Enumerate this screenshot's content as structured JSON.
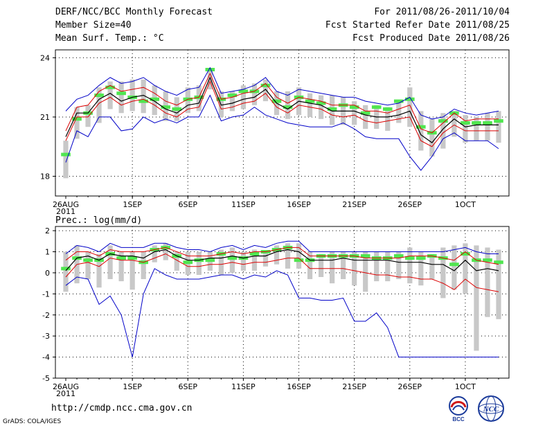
{
  "header": {
    "title": "DERF/NCC/BCC Monthly Forecast",
    "member_size": "Member Size=40",
    "variable": "Mean Surf. Temp.: °C",
    "forecast_range": "For 2011/08/26-2011/10/04",
    "start_date": "Fcst Started Refer Date 2011/08/25",
    "produced_date": "Fcst Produced Date 2011/08/26"
  },
  "footer": {
    "url": "http://cmdp.ncc.cma.gov.cn",
    "grads": "GrADS: COLA/IGES",
    "logo_bcc": "BCC",
    "logo_ncc": "NCC"
  },
  "colors": {
    "envelope": "#0000c8",
    "spread": "#dc0000",
    "mean": "#000000",
    "observed": "#50e650",
    "box": "#c8c8c8"
  },
  "chart_data": [
    {
      "type": "line",
      "id": "temp",
      "title": "Mean Surf. Temp.: °C",
      "ylim": [
        17,
        24.4
      ],
      "yticks": [
        18,
        21,
        24
      ],
      "xtick_labels": [
        {
          "i": 0,
          "label": "26AUG",
          "sub": "2011"
        },
        {
          "i": 6,
          "label": "1SEP"
        },
        {
          "i": 11,
          "label": "6SEP"
        },
        {
          "i": 16,
          "label": "11SEP"
        },
        {
          "i": 21,
          "label": "16SEP"
        },
        {
          "i": 26,
          "label": "21SEP"
        },
        {
          "i": 31,
          "label": "26SEP"
        },
        {
          "i": 36,
          "label": "1OCT"
        }
      ],
      "n_days": 40,
      "series": [
        {
          "name": "ensemble_max",
          "role": "envelope",
          "values": [
            21.3,
            21.9,
            22.1,
            22.6,
            23.0,
            22.7,
            22.8,
            23.0,
            22.6,
            22.3,
            22.1,
            22.4,
            22.5,
            23.5,
            22.2,
            22.3,
            22.4,
            22.6,
            23.0,
            22.3,
            22.1,
            22.4,
            22.3,
            22.2,
            22.1,
            22.0,
            22.0,
            21.8,
            21.7,
            21.6,
            21.7,
            22.0,
            21.1,
            20.9,
            21.0,
            21.4,
            21.2,
            21.1,
            21.2,
            21.3
          ]
        },
        {
          "name": "spread_upper",
          "role": "spread",
          "values": [
            20.3,
            21.5,
            21.6,
            22.3,
            22.6,
            22.3,
            22.4,
            22.5,
            22.2,
            21.8,
            21.6,
            21.9,
            22.0,
            23.2,
            21.9,
            22.0,
            22.2,
            22.3,
            22.7,
            22.0,
            21.7,
            22.0,
            21.9,
            21.8,
            21.6,
            21.6,
            21.6,
            21.3,
            21.3,
            21.2,
            21.4,
            21.6,
            20.4,
            20.2,
            20.7,
            21.2,
            20.8,
            20.9,
            20.9,
            20.9
          ]
        },
        {
          "name": "ensemble_mean",
          "role": "mean",
          "values": [
            20.0,
            21.2,
            21.2,
            21.9,
            22.2,
            21.8,
            22.0,
            22.1,
            21.8,
            21.4,
            21.2,
            21.6,
            21.7,
            23.0,
            21.6,
            21.7,
            21.9,
            22.0,
            22.4,
            21.7,
            21.4,
            21.8,
            21.7,
            21.6,
            21.3,
            21.3,
            21.3,
            21.1,
            21.0,
            21.0,
            21.1,
            21.3,
            20.1,
            19.7,
            20.4,
            20.9,
            20.5,
            20.6,
            20.6,
            20.6
          ]
        },
        {
          "name": "spread_lower",
          "role": "spread",
          "values": [
            19.8,
            21.0,
            21.0,
            21.7,
            22.0,
            21.6,
            21.8,
            21.9,
            21.6,
            21.2,
            21.0,
            21.4,
            21.5,
            22.8,
            21.4,
            21.5,
            21.7,
            21.8,
            22.2,
            21.5,
            21.2,
            21.6,
            21.5,
            21.4,
            21.1,
            21.0,
            21.1,
            20.8,
            20.7,
            20.8,
            20.9,
            21.0,
            19.8,
            19.5,
            20.2,
            20.6,
            20.3,
            20.3,
            20.3,
            20.3
          ]
        },
        {
          "name": "ensemble_min",
          "role": "envelope",
          "values": [
            18.7,
            20.3,
            20.0,
            21.0,
            21.0,
            20.3,
            20.4,
            21.0,
            20.7,
            20.9,
            20.7,
            21.0,
            21.0,
            22.1,
            20.8,
            21.0,
            21.1,
            21.5,
            21.1,
            20.9,
            20.7,
            20.6,
            20.5,
            20.5,
            20.5,
            20.7,
            20.4,
            20.0,
            19.9,
            19.9,
            19.9,
            19.0,
            18.3,
            19.0,
            19.9,
            20.2,
            19.8,
            19.8,
            19.8,
            19.4
          ]
        },
        {
          "name": "observed_estimate",
          "role": "dashes",
          "values": [
            19.1,
            20.9,
            21.2,
            22.1,
            22.5,
            22.2,
            22.0,
            21.8,
            21.9,
            21.5,
            21.4,
            21.9,
            22.0,
            23.4,
            21.9,
            22.1,
            22.3,
            22.3,
            22.6,
            21.8,
            21.5,
            22.0,
            21.8,
            21.7,
            21.4,
            21.6,
            21.5,
            21.2,
            21.5,
            21.4,
            21.8,
            21.9,
            20.5,
            20.2,
            20.8,
            21.2,
            20.7,
            20.7,
            20.7,
            20.8
          ]
        },
        {
          "name": "box_upper",
          "role": "box",
          "values": [
            19.8,
            21.5,
            21.6,
            22.5,
            22.8,
            22.8,
            22.9,
            22.9,
            22.6,
            22.3,
            22.0,
            22.5,
            22.6,
            23.4,
            22.3,
            22.3,
            22.6,
            22.7,
            22.9,
            22.3,
            22.3,
            22.5,
            22.2,
            22.1,
            22.1,
            22.0,
            21.8,
            21.6,
            21.6,
            21.5,
            21.8,
            22.5,
            21.3,
            20.9,
            21.2,
            21.3,
            21.1,
            21.0,
            21.2,
            21.3
          ]
        },
        {
          "name": "box_lower",
          "role": "box",
          "values": [
            17.9,
            19.9,
            20.5,
            20.7,
            21.4,
            21.2,
            21.3,
            21.2,
            21.1,
            20.8,
            20.8,
            21.2,
            21.3,
            22.4,
            21.0,
            21.3,
            21.4,
            21.6,
            21.8,
            21.1,
            20.9,
            21.1,
            21.0,
            20.9,
            20.6,
            20.6,
            20.6,
            20.4,
            20.4,
            20.3,
            20.7,
            20.5,
            19.3,
            19.0,
            19.4,
            20.0,
            19.7,
            19.8,
            19.8,
            19.7
          ]
        }
      ]
    },
    {
      "type": "line",
      "id": "prec",
      "title": "Prec.: log(mm/d)",
      "ylim": [
        -5,
        2.2
      ],
      "yticks": [
        -5,
        -4,
        -3,
        -2,
        -1,
        0,
        1,
        2
      ],
      "xtick_labels": [
        {
          "i": 0,
          "label": "26AUG",
          "sub": "2011"
        },
        {
          "i": 6,
          "label": "1SEP"
        },
        {
          "i": 11,
          "label": "6SEP"
        },
        {
          "i": 16,
          "label": "11SEP"
        },
        {
          "i": 21,
          "label": "16SEP"
        },
        {
          "i": 26,
          "label": "21SEP"
        },
        {
          "i": 31,
          "label": "26SEP"
        },
        {
          "i": 36,
          "label": "1OCT"
        }
      ],
      "n_days": 40,
      "series": [
        {
          "name": "ensemble_max",
          "role": "envelope",
          "values": [
            0.9,
            1.3,
            1.2,
            1.0,
            1.4,
            1.2,
            1.2,
            1.2,
            1.4,
            1.4,
            1.2,
            1.1,
            1.1,
            1.0,
            1.2,
            1.3,
            1.1,
            1.3,
            1.2,
            1.4,
            1.5,
            1.5,
            1.0,
            1.0,
            1.0,
            1.0,
            1.0,
            1.0,
            1.0,
            1.0,
            1.0,
            1.0,
            1.0,
            1.0,
            1.0,
            1.1,
            1.2,
            1.0,
            0.9,
            0.9
          ]
        },
        {
          "name": "spread_upper",
          "role": "spread",
          "values": [
            0.6,
            1.0,
            1.0,
            0.8,
            1.1,
            1.0,
            1.0,
            1.0,
            1.1,
            1.2,
            1.0,
            0.8,
            0.8,
            0.8,
            0.9,
            1.0,
            0.9,
            1.0,
            1.0,
            1.1,
            1.2,
            1.2,
            0.8,
            0.8,
            0.8,
            0.8,
            0.8,
            0.7,
            0.7,
            0.7,
            0.7,
            0.8,
            0.8,
            0.8,
            0.7,
            0.6,
            1.0,
            0.6,
            0.5,
            0.4
          ]
        },
        {
          "name": "ensemble_mean",
          "role": "mean",
          "values": [
            0.1,
            0.7,
            0.8,
            0.6,
            0.9,
            0.8,
            0.8,
            0.7,
            1.0,
            1.1,
            0.8,
            0.6,
            0.6,
            0.7,
            0.7,
            0.8,
            0.7,
            0.8,
            0.8,
            1.0,
            1.1,
            1.0,
            0.6,
            0.6,
            0.6,
            0.7,
            0.6,
            0.6,
            0.6,
            0.6,
            0.5,
            0.5,
            0.5,
            0.4,
            0.4,
            0.1,
            0.6,
            0.1,
            0.2,
            0.1
          ]
        },
        {
          "name": "spread_lower",
          "role": "spread",
          "values": [
            -0.2,
            0.4,
            0.5,
            0.3,
            0.7,
            0.6,
            0.6,
            0.5,
            0.7,
            0.9,
            0.6,
            0.3,
            0.3,
            0.4,
            0.4,
            0.5,
            0.4,
            0.5,
            0.5,
            0.6,
            0.7,
            0.7,
            0.2,
            0.2,
            0.2,
            0.2,
            0.1,
            0.0,
            -0.1,
            -0.1,
            -0.2,
            -0.2,
            -0.3,
            -0.3,
            -0.5,
            -0.8,
            -0.3,
            -0.7,
            -0.8,
            -0.9
          ]
        },
        {
          "name": "ensemble_min",
          "role": "envelope",
          "values": [
            -0.6,
            -0.2,
            -0.3,
            -1.5,
            -1.1,
            -2.0,
            -4.0,
            -1.0,
            0.2,
            -0.1,
            -0.3,
            -0.3,
            -0.3,
            -0.2,
            -0.1,
            -0.1,
            -0.3,
            -0.1,
            -0.2,
            0.1,
            -0.1,
            -1.2,
            -1.2,
            -1.3,
            -1.3,
            -1.2,
            -2.3,
            -2.3,
            -1.9,
            -2.6,
            -4.0,
            -4.0,
            -4.0,
            -4.0,
            -4.0,
            -4.0,
            -4.0,
            -4.0,
            -4.0,
            -4.0
          ]
        },
        {
          "name": "observed_estimate",
          "role": "dashes",
          "values": [
            0.2,
            0.7,
            0.6,
            0.6,
            0.9,
            0.7,
            0.7,
            0.5,
            1.1,
            1.2,
            0.8,
            0.5,
            0.6,
            0.6,
            0.9,
            0.7,
            0.7,
            0.9,
            1.0,
            1.1,
            1.2,
            0.6,
            0.6,
            0.8,
            0.8,
            0.8,
            0.8,
            0.8,
            0.7,
            0.7,
            0.8,
            0.7,
            0.7,
            0.8,
            0.7,
            0.4,
            0.9,
            0.6,
            0.6,
            0.5
          ]
        },
        {
          "name": "box_upper",
          "role": "box",
          "values": [
            1.0,
            1.3,
            1.0,
            0.9,
            1.3,
            1.0,
            1.0,
            1.0,
            1.3,
            1.4,
            1.0,
            1.0,
            1.0,
            1.0,
            1.1,
            1.2,
            1.0,
            1.1,
            1.0,
            1.3,
            1.4,
            1.4,
            1.0,
            0.9,
            1.0,
            1.0,
            1.0,
            1.0,
            1.0,
            1.0,
            1.0,
            1.2,
            1.0,
            0.9,
            1.2,
            1.3,
            1.4,
            1.3,
            1.2,
            1.1
          ]
        },
        {
          "name": "box_lower",
          "role": "box",
          "values": [
            -0.9,
            -0.5,
            -0.3,
            -0.7,
            -0.3,
            -0.4,
            -0.8,
            -0.3,
            0.5,
            0.6,
            0.1,
            -0.1,
            -0.1,
            0.1,
            -0.1,
            0.0,
            0.1,
            0.1,
            0.3,
            0.4,
            0.2,
            0.2,
            -0.3,
            -0.2,
            -0.5,
            -0.3,
            -0.6,
            -0.9,
            -0.4,
            -0.4,
            -0.3,
            -0.5,
            -0.6,
            -0.3,
            -1.2,
            -0.8,
            -1.0,
            -3.7,
            -2.1,
            -2.2
          ]
        }
      ]
    }
  ]
}
